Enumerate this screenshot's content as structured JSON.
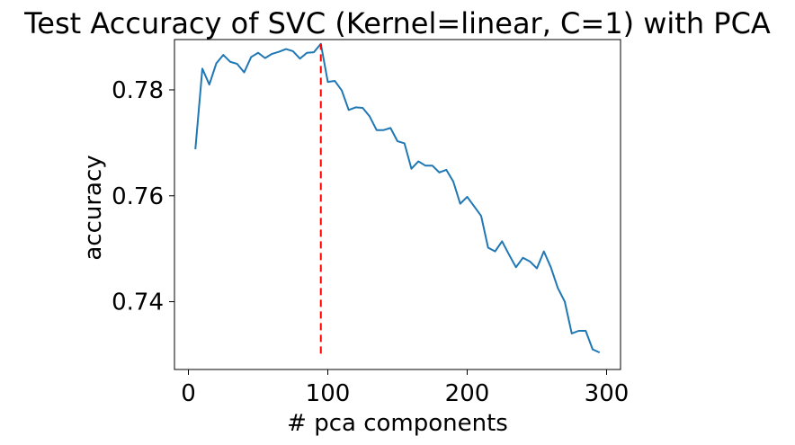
{
  "chart_data": {
    "type": "line",
    "title": "Test Accuracy of SVC (Kernel=linear, C=1) with PCA",
    "xlabel": "# pca components",
    "ylabel": "accuracy",
    "xlim": [
      -10,
      310
    ],
    "ylim": [
      0.7272,
      0.7895
    ],
    "x_ticks": [
      0,
      100,
      200,
      300
    ],
    "x_tick_labels": [
      "0",
      "100",
      "200",
      "300"
    ],
    "y_ticks": [
      0.74,
      0.76,
      0.78
    ],
    "y_tick_labels": [
      "0.74",
      "0.76",
      "0.78"
    ],
    "grid": false,
    "series": [
      {
        "color": "#1f77b4",
        "x": [
          5,
          10,
          15,
          20,
          25,
          30,
          35,
          40,
          45,
          50,
          55,
          60,
          65,
          70,
          75,
          80,
          85,
          90,
          95,
          100,
          105,
          110,
          115,
          120,
          125,
          130,
          135,
          140,
          145,
          150,
          155,
          160,
          165,
          170,
          175,
          180,
          185,
          190,
          195,
          200,
          205,
          210,
          215,
          220,
          225,
          230,
          235,
          240,
          245,
          250,
          255,
          260,
          265,
          270,
          275,
          280,
          285,
          290,
          295
        ],
        "y": [
          0.7688,
          0.784,
          0.781,
          0.785,
          0.7866,
          0.7853,
          0.7849,
          0.7833,
          0.7862,
          0.787,
          0.786,
          0.7868,
          0.7872,
          0.7877,
          0.7873,
          0.7859,
          0.787,
          0.7871,
          0.7887,
          0.7815,
          0.7817,
          0.7799,
          0.7762,
          0.7767,
          0.7766,
          0.775,
          0.7724,
          0.7724,
          0.7728,
          0.7703,
          0.7699,
          0.7651,
          0.7665,
          0.7657,
          0.7657,
          0.7644,
          0.7649,
          0.7627,
          0.7585,
          0.7598,
          0.758,
          0.7562,
          0.7502,
          0.7495,
          0.7514,
          0.7489,
          0.7465,
          0.7483,
          0.7476,
          0.7463,
          0.7495,
          0.7465,
          0.7426,
          0.74,
          0.734,
          0.7345,
          0.7345,
          0.731,
          0.7304
        ]
      }
    ],
    "vline": {
      "x": 95,
      "y_from": 0.7302,
      "y_to": 0.7887,
      "color": "#ff0000",
      "style": "dashed"
    }
  }
}
